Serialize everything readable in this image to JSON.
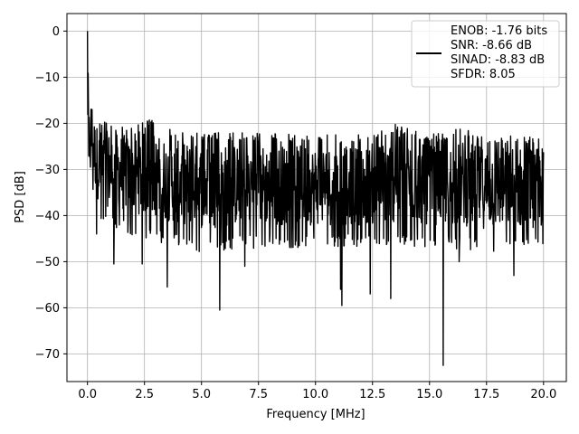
{
  "chart_data": {
    "type": "line",
    "title": "",
    "xlabel": "Frequency [MHz]",
    "ylabel": "PSD [dB]",
    "xlim": [
      -0.9,
      21.0
    ],
    "ylim": [
      -76.0,
      3.8
    ],
    "xticks": [
      0.0,
      2.5,
      5.0,
      7.5,
      10.0,
      12.5,
      15.0,
      17.5,
      20.0
    ],
    "xtick_labels": [
      "0.0",
      "2.5",
      "5.0",
      "7.5",
      "10.0",
      "12.5",
      "15.0",
      "17.5",
      "20.0"
    ],
    "yticks": [
      0,
      -10,
      -20,
      -30,
      -40,
      -50,
      -60,
      -70
    ],
    "ytick_labels": [
      "0",
      "−10",
      "−20",
      "−30",
      "−40",
      "−50",
      "−60",
      "−70"
    ],
    "grid": true,
    "legend_position": "top-right",
    "series": [
      {
        "name": "ENOB: -1.76 bits\nSNR: -8.66 dB\nSINAD: -8.83 dB\nSFDR: 8.05",
        "color": "#000000",
        "x_range": [
          0.0,
          20.0
        ],
        "upper_envelope": [
          [
            0.0,
            0.0
          ],
          [
            0.05,
            -12
          ],
          [
            0.1,
            -20
          ],
          [
            0.2,
            -13
          ],
          [
            0.3,
            -17
          ],
          [
            0.5,
            -19
          ],
          [
            1.0,
            -19.5
          ],
          [
            2.0,
            -20.5
          ],
          [
            2.7,
            -19
          ],
          [
            3.5,
            -21
          ],
          [
            5.0,
            -22
          ],
          [
            7.5,
            -22
          ],
          [
            10.0,
            -22.5
          ],
          [
            12.5,
            -22.5
          ],
          [
            13.5,
            -20
          ],
          [
            15.0,
            -22.5
          ],
          [
            16.5,
            -21
          ],
          [
            17.5,
            -22.5
          ],
          [
            20.0,
            -22.5
          ]
        ],
        "lower_envelope": [
          [
            0.0,
            -28
          ],
          [
            0.3,
            -37
          ],
          [
            0.5,
            -42
          ],
          [
            1.0,
            -43
          ],
          [
            2.5,
            -45
          ],
          [
            5.0,
            -48
          ],
          [
            7.5,
            -47
          ],
          [
            10.0,
            -47
          ],
          [
            12.5,
            -47
          ],
          [
            15.0,
            -47
          ],
          [
            17.5,
            -48
          ],
          [
            20.0,
            -48
          ]
        ],
        "center_level": -32,
        "minima": [
          [
            0.12,
            -27
          ],
          [
            0.4,
            -44
          ],
          [
            1.15,
            -50.5
          ],
          [
            2.4,
            -50.5
          ],
          [
            3.5,
            -55.5
          ],
          [
            5.8,
            -60.5
          ],
          [
            6.9,
            -51
          ],
          [
            11.1,
            -56
          ],
          [
            11.15,
            -59.5
          ],
          [
            12.4,
            -57
          ],
          [
            13.3,
            -58
          ],
          [
            15.6,
            -72.5
          ],
          [
            16.3,
            -50
          ],
          [
            18.7,
            -53
          ]
        ]
      }
    ]
  },
  "legend": {
    "lines": [
      "ENOB: -1.76 bits",
      "SNR: -8.66 dB",
      "SINAD: -8.83 dB",
      "SFDR: 8.05"
    ],
    "color": "#000000"
  }
}
